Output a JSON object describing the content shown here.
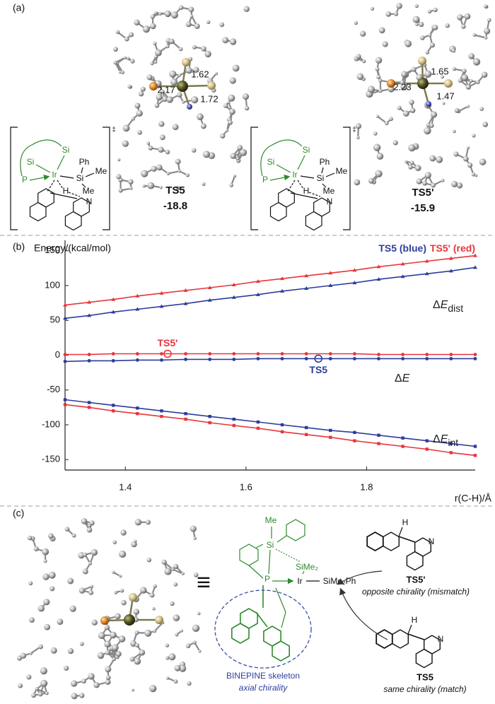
{
  "panel_a": {
    "label": "(a)",
    "structures": [
      {
        "name": "TS5",
        "energy": -18.8,
        "distances": [
          1.62,
          2.17,
          1.72
        ]
      },
      {
        "name": "TS5'",
        "energy": -15.9,
        "distances": [
          1.65,
          2.23,
          1.47
        ]
      }
    ],
    "schemes": [
      {
        "atoms": [
          "Si",
          "Si",
          "P",
          "Ir",
          "Si",
          "Ph",
          "Me",
          "Me",
          "H",
          "N"
        ],
        "dagger": "‡"
      },
      {
        "atoms": [
          "Si",
          "Si",
          "P",
          "Ir",
          "Si",
          "Ph",
          "Me",
          "Me",
          "H",
          "N"
        ],
        "dagger": "‡"
      }
    ]
  },
  "chart_data": {
    "type": "line",
    "panel_label": "(b)",
    "y_label": "Energy/(kcal/mol)",
    "x_label": "r(C-H)/Å",
    "legend": [
      {
        "text": "TS5 (blue)",
        "color": "#2b3d9b"
      },
      {
        "text": "TS5' (red)",
        "color": "#e8353b"
      }
    ],
    "x": [
      1.3,
      1.34,
      1.38,
      1.42,
      1.46,
      1.5,
      1.54,
      1.58,
      1.62,
      1.66,
      1.7,
      1.74,
      1.78,
      1.82,
      1.86,
      1.9,
      1.94,
      1.98
    ],
    "xlim": [
      1.3,
      1.98
    ],
    "xticks": [
      1.4,
      1.6,
      1.8
    ],
    "ylim": [
      -165,
      165
    ],
    "yticks": [
      150,
      100,
      50,
      0,
      -50,
      -100,
      -150
    ],
    "series": [
      {
        "color": "#e8353b",
        "marker": "triangle",
        "values": [
          72,
          76,
          80,
          85,
          89,
          93,
          97,
          101,
          106,
          110,
          114,
          118,
          122,
          127,
          131,
          135,
          139,
          143
        ]
      },
      {
        "color": "#2b3d9b",
        "marker": "triangle",
        "values": [
          53,
          57,
          62,
          66,
          70,
          74,
          79,
          83,
          87,
          92,
          96,
          100,
          104,
          109,
          113,
          117,
          121,
          126
        ]
      },
      {
        "color": "#e8353b",
        "marker": "circle",
        "values": [
          1,
          1,
          2,
          2,
          2,
          2,
          2,
          2,
          2,
          2,
          2,
          2,
          2,
          1,
          1,
          1,
          1,
          1
        ]
      },
      {
        "color": "#2b3d9b",
        "marker": "circle",
        "values": [
          -9,
          -8,
          -8,
          -7,
          -7,
          -6,
          -6,
          -6,
          -5,
          -5,
          -5,
          -5,
          -5,
          -5,
          -5,
          -5,
          -5,
          -5
        ]
      },
      {
        "color": "#2b3d9b",
        "marker": "square",
        "values": [
          -64,
          -68,
          -72,
          -76,
          -80,
          -84,
          -88,
          -92,
          -96,
          -100,
          -104,
          -108,
          -111,
          -115,
          -119,
          -123,
          -127,
          -131
        ]
      },
      {
        "color": "#e8353b",
        "marker": "square",
        "values": [
          -71,
          -75,
          -80,
          -84,
          -88,
          -92,
          -97,
          -101,
          -105,
          -110,
          -114,
          -118,
          -123,
          -127,
          -131,
          -135,
          -140,
          -144
        ]
      }
    ],
    "highlights": [
      {
        "label": "TS5'",
        "x": 1.47,
        "y": 2,
        "color": "#e8353b"
      },
      {
        "label": "TS5",
        "x": 1.72,
        "y": -5,
        "color": "#2b3d9b"
      }
    ],
    "annotations": [
      {
        "delta": "Δ",
        "var": "E",
        "sub": "dist"
      },
      {
        "delta": "Δ",
        "var": "E"
      },
      {
        "delta": "Δ",
        "var": "E",
        "sub": "int"
      }
    ]
  },
  "panel_c": {
    "label": "(c)",
    "equiv": "≡",
    "ligand_atoms": [
      "Me",
      "Si",
      "SiMe₂",
      "P",
      "Ir",
      "SiMe₂Ph"
    ],
    "skeleton_label": "BINEPINE skeleton",
    "chirality_label": "axial chirality",
    "substrates": [
      {
        "atoms": [
          "H",
          "N"
        ],
        "name": "TS5'",
        "note": "opposite chirality (mismatch)"
      },
      {
        "atoms": [
          "H",
          "N"
        ],
        "name": "TS5",
        "note": "same chirality (match)"
      }
    ]
  }
}
